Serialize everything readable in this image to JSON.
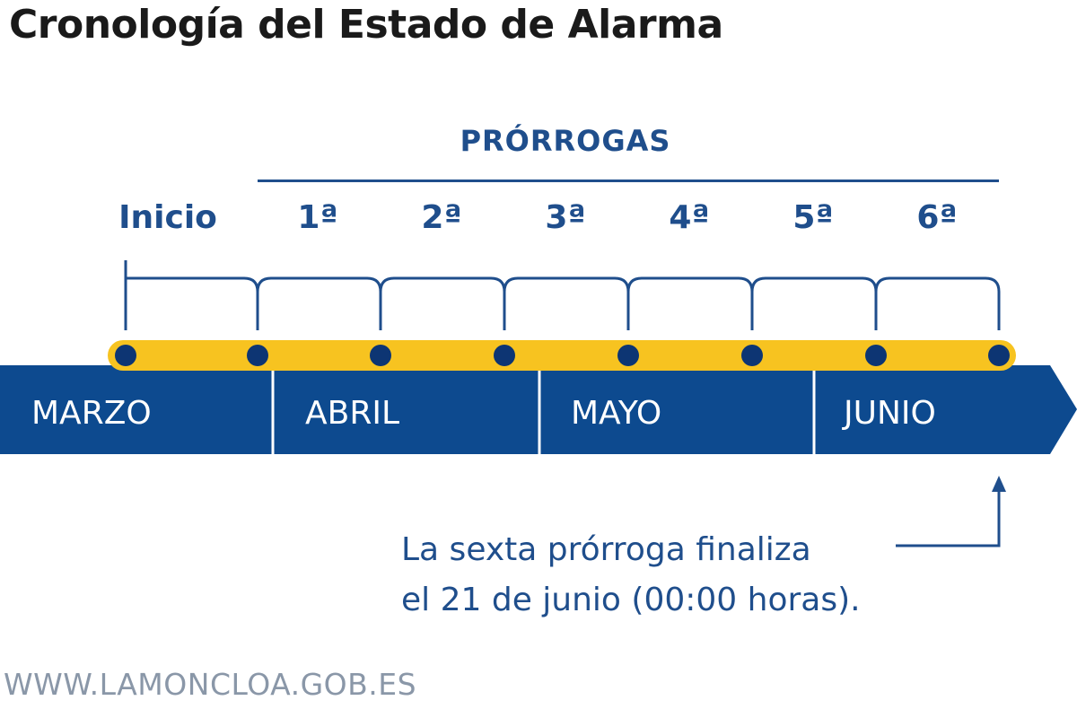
{
  "title": "Cronología del Estado de Alarma",
  "prorrogas_label": "PRÓRROGAS",
  "periods": [
    "Inicio",
    "1ª",
    "2ª",
    "3ª",
    "4ª",
    "5ª",
    "6ª"
  ],
  "months": [
    "MARZO",
    "ABRIL",
    "MAYO",
    "JUNIO"
  ],
  "note": {
    "line1": "La sexta prórroga finaliza",
    "line2": "el 21 de junio (00:00 horas)."
  },
  "source": "WWW.LAMONCLOA.GOB.ES",
  "colors": {
    "navy": "#1f4e8c",
    "dark_navy": "#0d3573",
    "yellow": "#f7c320",
    "white": "#ffffff"
  }
}
